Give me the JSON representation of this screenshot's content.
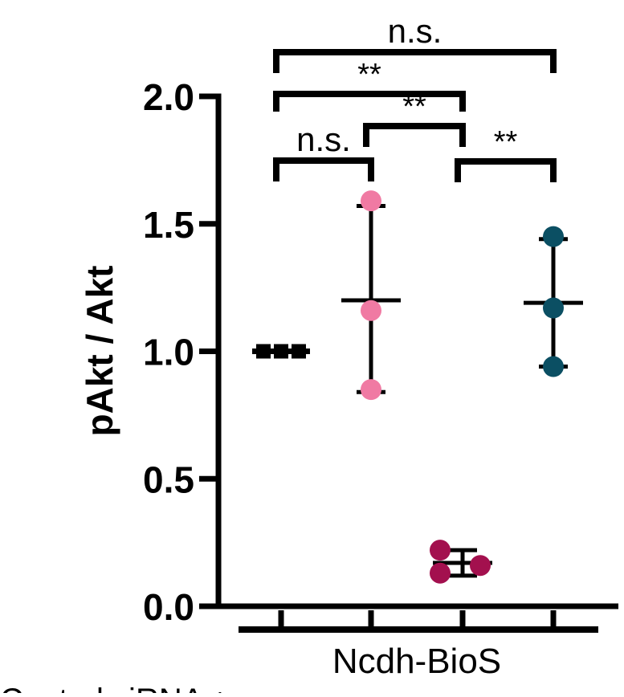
{
  "chart_data": {
    "type": "scatter",
    "ylabel": "pAkt / Akt",
    "ylim": [
      0.0,
      2.0
    ],
    "yticks": [
      "0.0",
      "0.5",
      "1.0",
      "1.5",
      "2.0"
    ],
    "xgroup_label": "Ncdh-BioS",
    "row_label": "Control siRNA +",
    "groups": [
      {
        "values": [
          1.0,
          1.0,
          1.0
        ],
        "mean": 1.0,
        "err_low": 1.0,
        "err_high": 1.0,
        "color": "#000000",
        "marker": "square"
      },
      {
        "values": [
          1.59,
          1.16,
          0.85
        ],
        "mean": 1.2,
        "err_low": 0.84,
        "err_high": 1.57,
        "color": "#f07aa3",
        "marker": "circle"
      },
      {
        "values": [
          0.22,
          0.16,
          0.13
        ],
        "mean": 0.17,
        "err_low": 0.12,
        "err_high": 0.22,
        "color": "#a3104e",
        "marker": "circle"
      },
      {
        "values": [
          1.45,
          1.17,
          0.94
        ],
        "mean": 1.19,
        "err_low": 0.94,
        "err_high": 1.44,
        "color": "#0b4f63",
        "marker": "circle"
      }
    ],
    "significance": [
      {
        "from": 0,
        "to": 1,
        "label": "n.s."
      },
      {
        "from": 1,
        "to": 2,
        "label": "**"
      },
      {
        "from": 2,
        "to": 3,
        "label": "**"
      },
      {
        "from": 0,
        "to": 2,
        "label": "**"
      },
      {
        "from": 0,
        "to": 3,
        "label": "n.s."
      }
    ],
    "grid": false,
    "legend": "none"
  }
}
